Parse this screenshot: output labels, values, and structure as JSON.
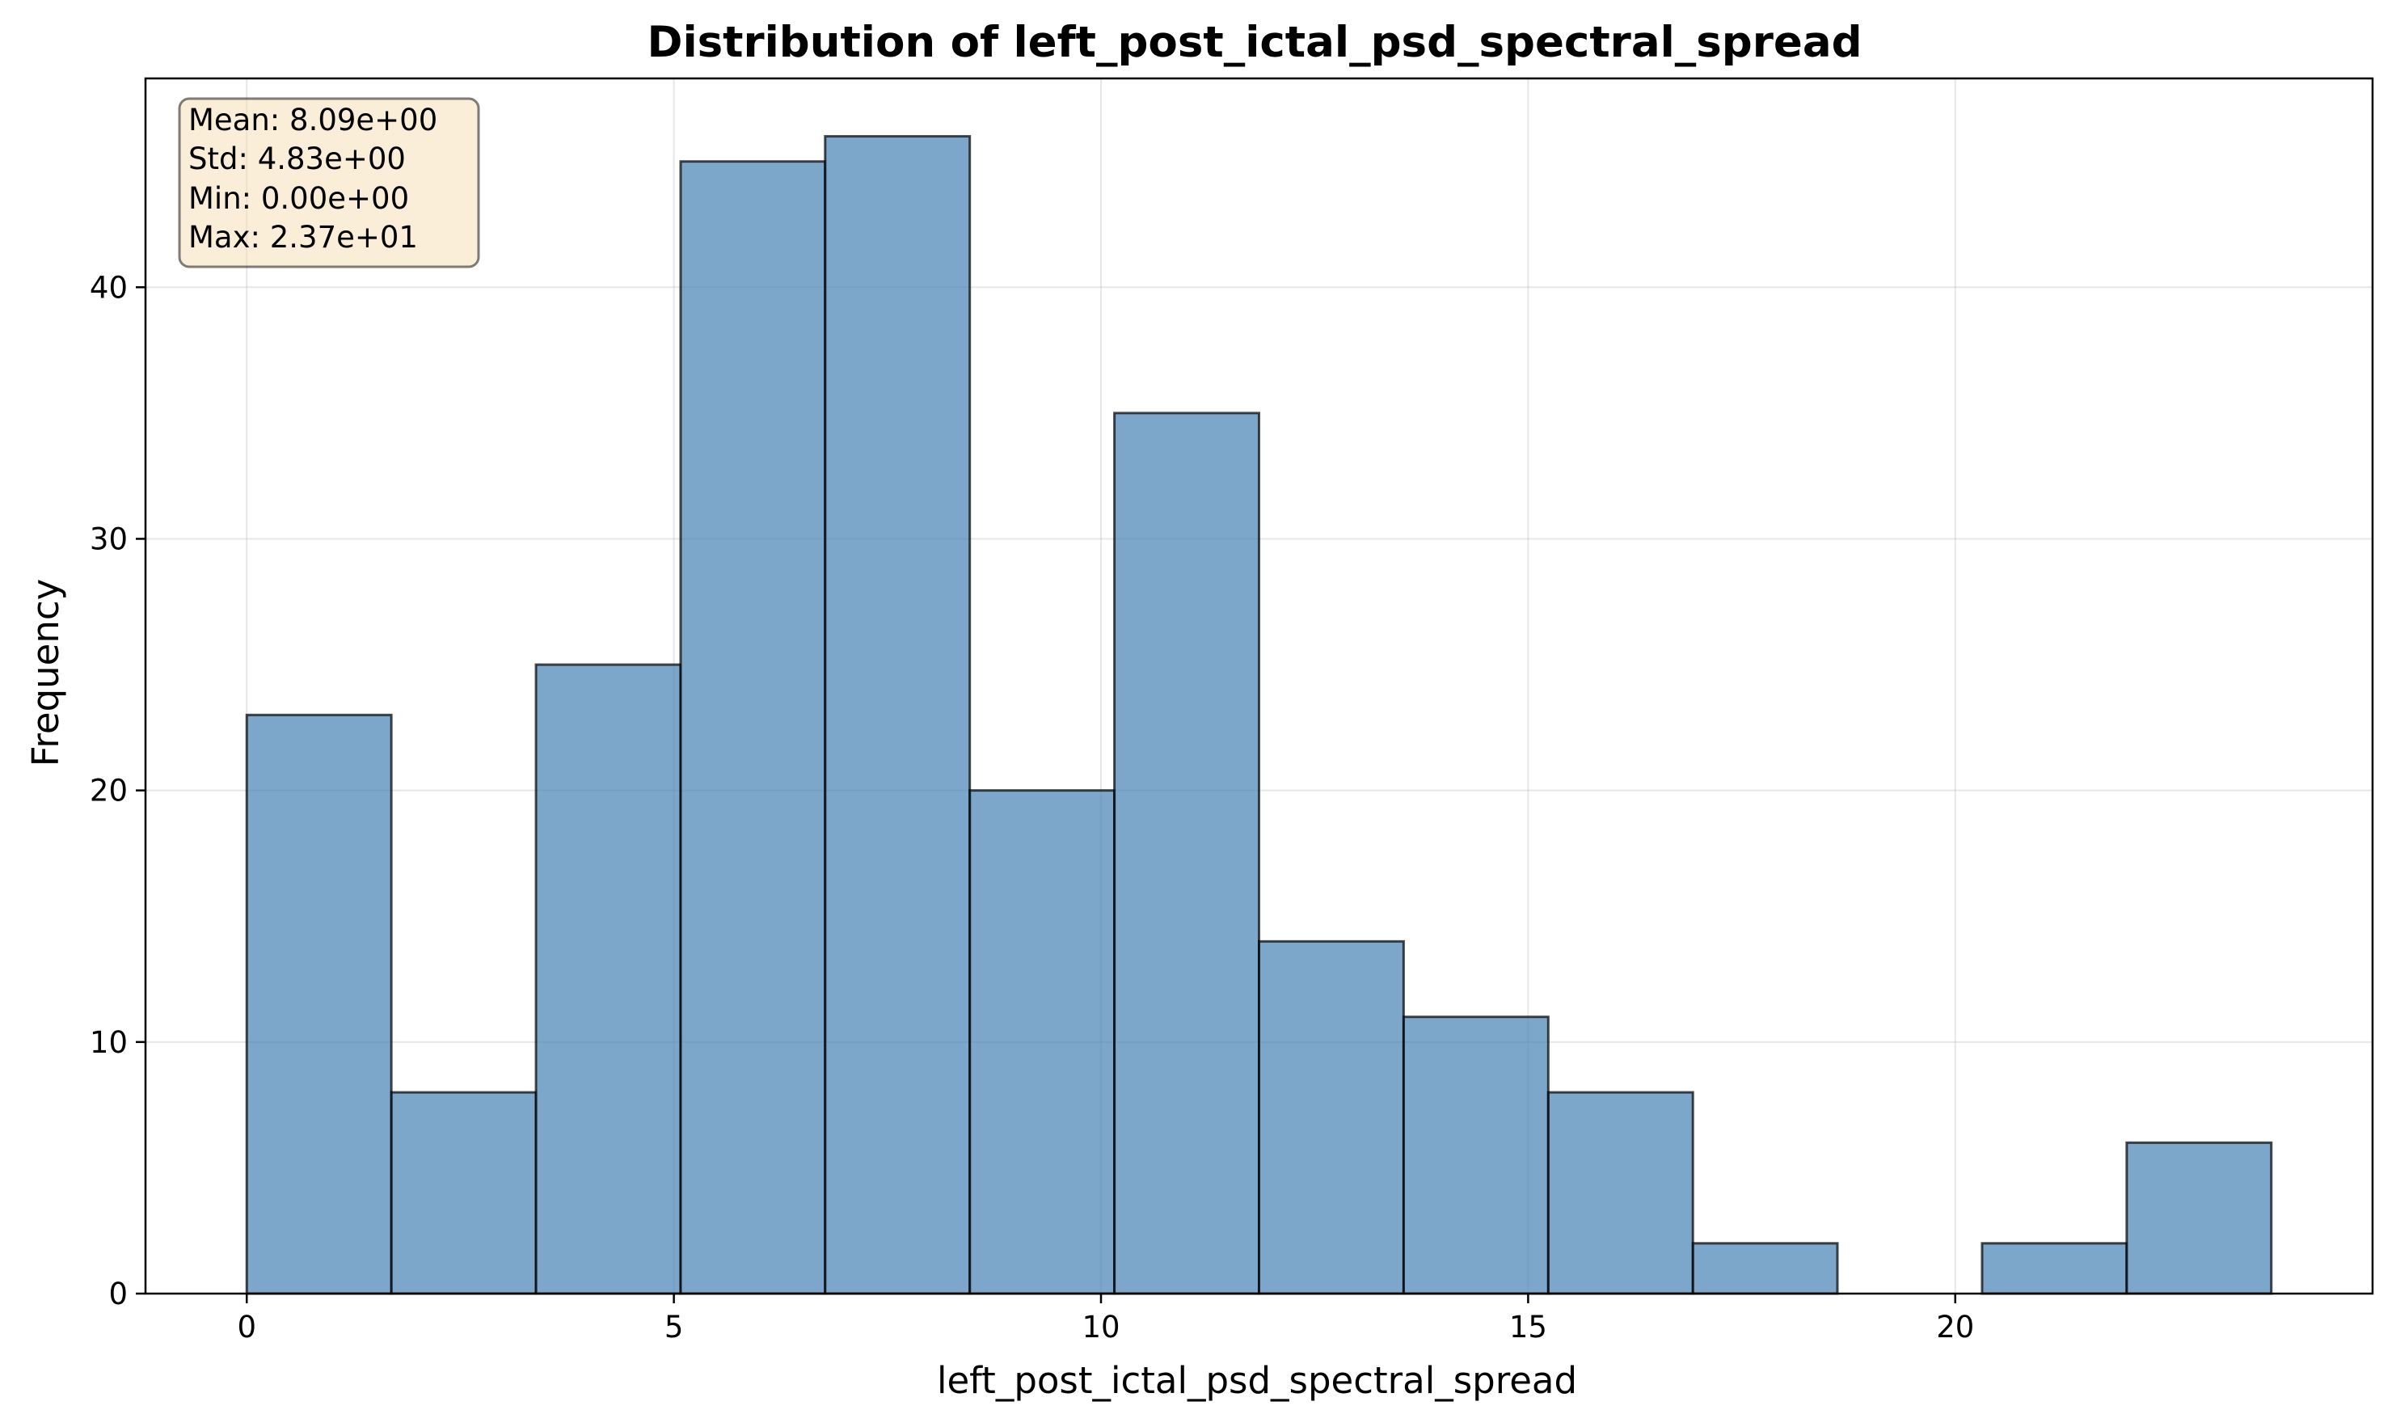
{
  "chart_data": {
    "type": "bar",
    "title": "Distribution of left_post_ictal_psd_spectral_spread",
    "xlabel": "left_post_ictal_psd_spectral_spread",
    "ylabel": "Frequency",
    "bin_edges": [
      0,
      1.693,
      3.386,
      5.079,
      6.771,
      8.464,
      10.157,
      11.85,
      13.543,
      15.236,
      16.929,
      18.621,
      20.314,
      22.007,
      23.7
    ],
    "values": [
      23,
      8,
      25,
      45,
      46,
      20,
      35,
      14,
      11,
      8,
      2,
      0,
      2,
      6
    ],
    "xlim": [
      -1.185,
      24.885
    ],
    "ylim": [
      0,
      48.3
    ],
    "xticks": [
      0,
      5,
      10,
      15,
      20
    ],
    "yticks": [
      0,
      10,
      20,
      30,
      40
    ],
    "grid": true,
    "bar_color": "#4682b4",
    "edge_color": "#000000",
    "stats_box": {
      "lines": [
        "Mean: 8.09e+00",
        "Std: 4.83e+00",
        "Min: 0.00e+00",
        "Max: 2.37e+01"
      ],
      "background": "#f5deb3",
      "placement": "top-left"
    }
  }
}
